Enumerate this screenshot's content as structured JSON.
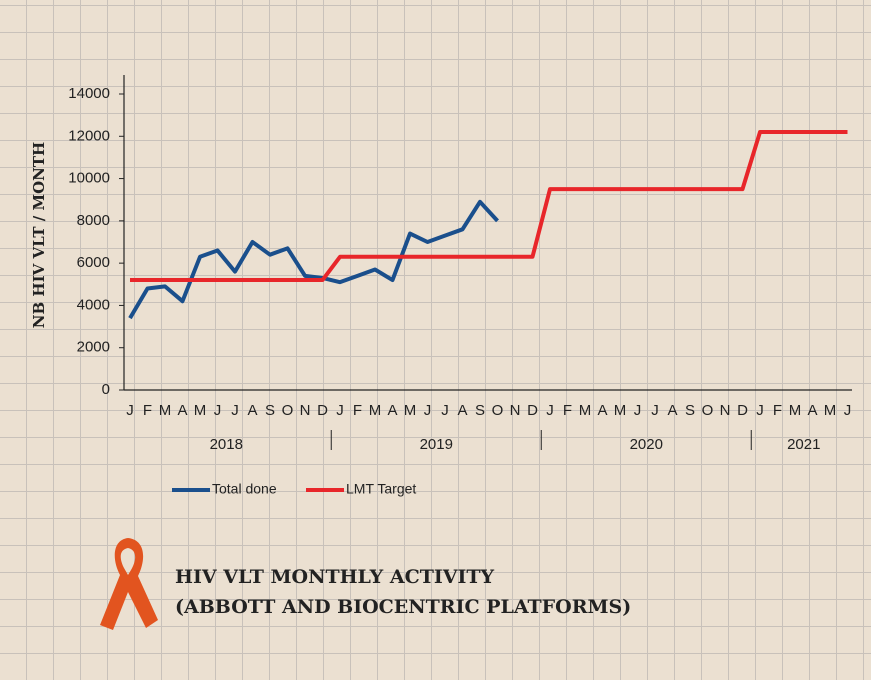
{
  "chart_data": {
    "type": "line",
    "title": [
      "HIV VLT MONTHLY ACTIVITY",
      "(ABBOTT AND BIOCENTRIC PLATFORMS)"
    ],
    "y_label": "NB HIV VLT / MONTH",
    "categories": [
      "J",
      "F",
      "M",
      "A",
      "M",
      "J",
      "J",
      "A",
      "S",
      "O",
      "N",
      "D",
      "J",
      "F",
      "M",
      "A",
      "M",
      "J",
      "J",
      "A",
      "S",
      "O",
      "N",
      "D",
      "J",
      "F",
      "M",
      "A",
      "M",
      "J",
      "J",
      "A",
      "S",
      "O",
      "N",
      "D",
      "J",
      "F",
      "M",
      "A",
      "M",
      "J"
    ],
    "groups": [
      "2018",
      "2019",
      "2020",
      "2021"
    ],
    "series": [
      {
        "name": "Total done",
        "color": "#1a4f8c",
        "values": [
          3400,
          4800,
          4900,
          4200,
          6300,
          6600,
          5600,
          7000,
          6400,
          6700,
          5400,
          5300,
          5100,
          5400,
          5700,
          5200,
          7400,
          7000,
          7300,
          7600,
          8900,
          8000,
          null,
          null,
          null,
          null,
          null,
          null,
          null,
          null,
          null,
          null,
          null,
          null,
          null,
          null,
          null,
          null,
          null,
          null,
          null,
          null
        ]
      },
      {
        "name": "LMT Target",
        "color": "#e8262a",
        "values": [
          5200,
          5200,
          5200,
          5200,
          5200,
          5200,
          5200,
          5200,
          5200,
          5200,
          5200,
          5200,
          6300,
          6300,
          6300,
          6300,
          6300,
          6300,
          6300,
          6300,
          6300,
          6300,
          6300,
          6300,
          9500,
          9500,
          9500,
          9500,
          9500,
          9500,
          9500,
          9500,
          9500,
          9500,
          9500,
          9500,
          12200,
          12200,
          12200,
          12200,
          12200,
          12200
        ]
      }
    ],
    "ylim": [
      0,
      14000
    ],
    "yticks": [
      0,
      2000,
      4000,
      6000,
      8000,
      10000,
      12000,
      14000
    ],
    "grid": false
  }
}
